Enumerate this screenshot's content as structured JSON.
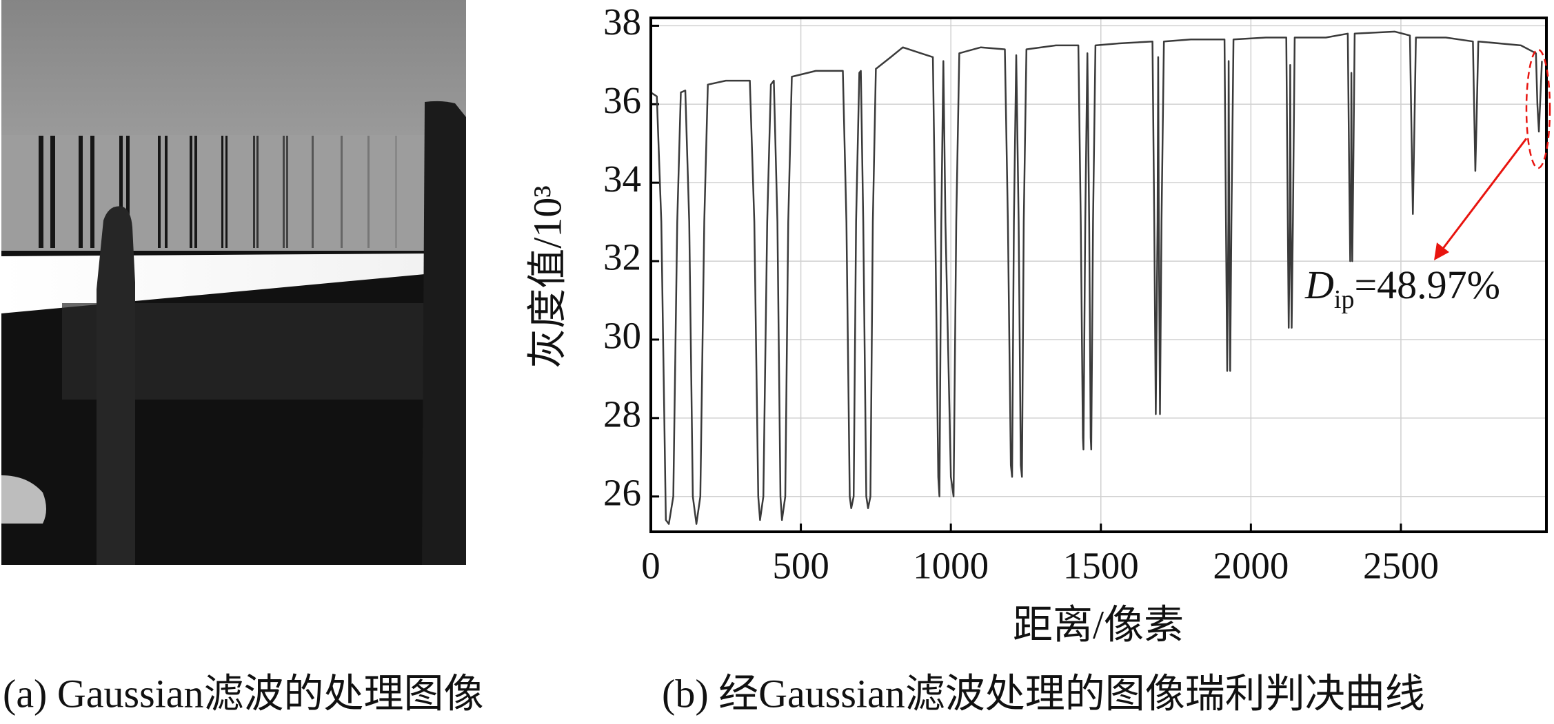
{
  "chart_data": {
    "type": "line",
    "y_label": "灰度值/10³",
    "x_label": "距离/像素",
    "caption_a": "(a) Gaussian滤波的处理图像",
    "caption_b": "(b) 经Gaussian滤波处理的图像瑞利判决曲线",
    "annotation": {
      "symbol": "D",
      "subscript": "ip",
      "text": "=48.97%"
    },
    "color": "#3a3a3a",
    "annotation_color": "#e8140f",
    "grid": true,
    "xlim": [
      0,
      2985
    ],
    "ylim": [
      25.1,
      38.2
    ],
    "xticks": [
      0,
      500,
      1000,
      1500,
      2000,
      2500
    ],
    "yticks": [
      26,
      28,
      30,
      32,
      34,
      36,
      38
    ],
    "x": [
      0,
      20,
      35,
      50,
      60,
      75,
      88,
      100,
      115,
      128,
      140,
      152,
      165,
      178,
      190,
      250,
      330,
      345,
      358,
      364,
      375,
      388,
      400,
      410,
      422,
      432,
      437,
      448,
      458,
      470,
      550,
      640,
      652,
      663,
      668,
      676,
      684,
      695,
      700,
      708,
      718,
      724,
      732,
      740,
      750,
      800,
      840,
      900,
      940,
      948,
      958,
      962,
      968,
      975,
      982,
      1000,
      1009,
      1018,
      1028,
      1100,
      1180,
      1190,
      1200,
      1204,
      1210,
      1218,
      1226,
      1233,
      1237,
      1243,
      1252,
      1350,
      1425,
      1433,
      1440,
      1442,
      1448,
      1455,
      1461,
      1466,
      1468,
      1474,
      1482,
      1560,
      1672,
      1678,
      1683,
      1689,
      1691,
      1693,
      1697,
      1702,
      1710,
      1800,
      1912,
      1917,
      1921,
      1925,
      1926,
      1928,
      1931,
      1935,
      1942,
      2050,
      2118,
      2123,
      2126,
      2130,
      2131,
      2133,
      2136,
      2140,
      2146,
      2250,
      2323,
      2328,
      2331,
      2334,
      2335,
      2336,
      2338,
      2341,
      2346,
      2480,
      2530,
      2536,
      2540,
      2544,
      2550,
      2650,
      2740,
      2745,
      2748,
      2752,
      2758,
      2900,
      2950,
      2955,
      2960,
      2965,
      2970
    ],
    "values": [
      36.3,
      36.2,
      33,
      25.4,
      25.3,
      26,
      33,
      36.3,
      36.35,
      33,
      26,
      25.3,
      26,
      33,
      36.5,
      36.6,
      36.6,
      33,
      26,
      25.4,
      26,
      33,
      36.5,
      36.6,
      33,
      26,
      25.4,
      26,
      33,
      36.7,
      36.85,
      36.85,
      33,
      26,
      25.7,
      26,
      33,
      36.8,
      36.85,
      33,
      26,
      25.7,
      26,
      33,
      36.9,
      37.2,
      37.45,
      37.3,
      37.2,
      33,
      26.5,
      26.0,
      33,
      37.1,
      33,
      26.5,
      26.0,
      33,
      37.3,
      37.45,
      37.4,
      33,
      26.8,
      26.5,
      33,
      37.25,
      33,
      26.8,
      26.5,
      33,
      37.4,
      37.5,
      37.5,
      33,
      27.5,
      27.2,
      33,
      37.3,
      33,
      27.5,
      27.2,
      33,
      37.5,
      37.55,
      37.6,
      33,
      28.1,
      33,
      37.2,
      33,
      28.1,
      33,
      37.6,
      37.65,
      37.65,
      33,
      29.2,
      33,
      37.1,
      33,
      29.2,
      33,
      37.65,
      37.7,
      37.7,
      33,
      30.3,
      33,
      37.0,
      33,
      30.3,
      33,
      37.7,
      37.7,
      37.8,
      34,
      32.0,
      34,
      36.8,
      34,
      32.0,
      34,
      37.8,
      37.85,
      37.75,
      35,
      33.2,
      35,
      37.7,
      37.7,
      37.6,
      35.5,
      34.3,
      35.5,
      37.6,
      37.5,
      37.3,
      36,
      35.3,
      36.2,
      37.1
    ]
  }
}
